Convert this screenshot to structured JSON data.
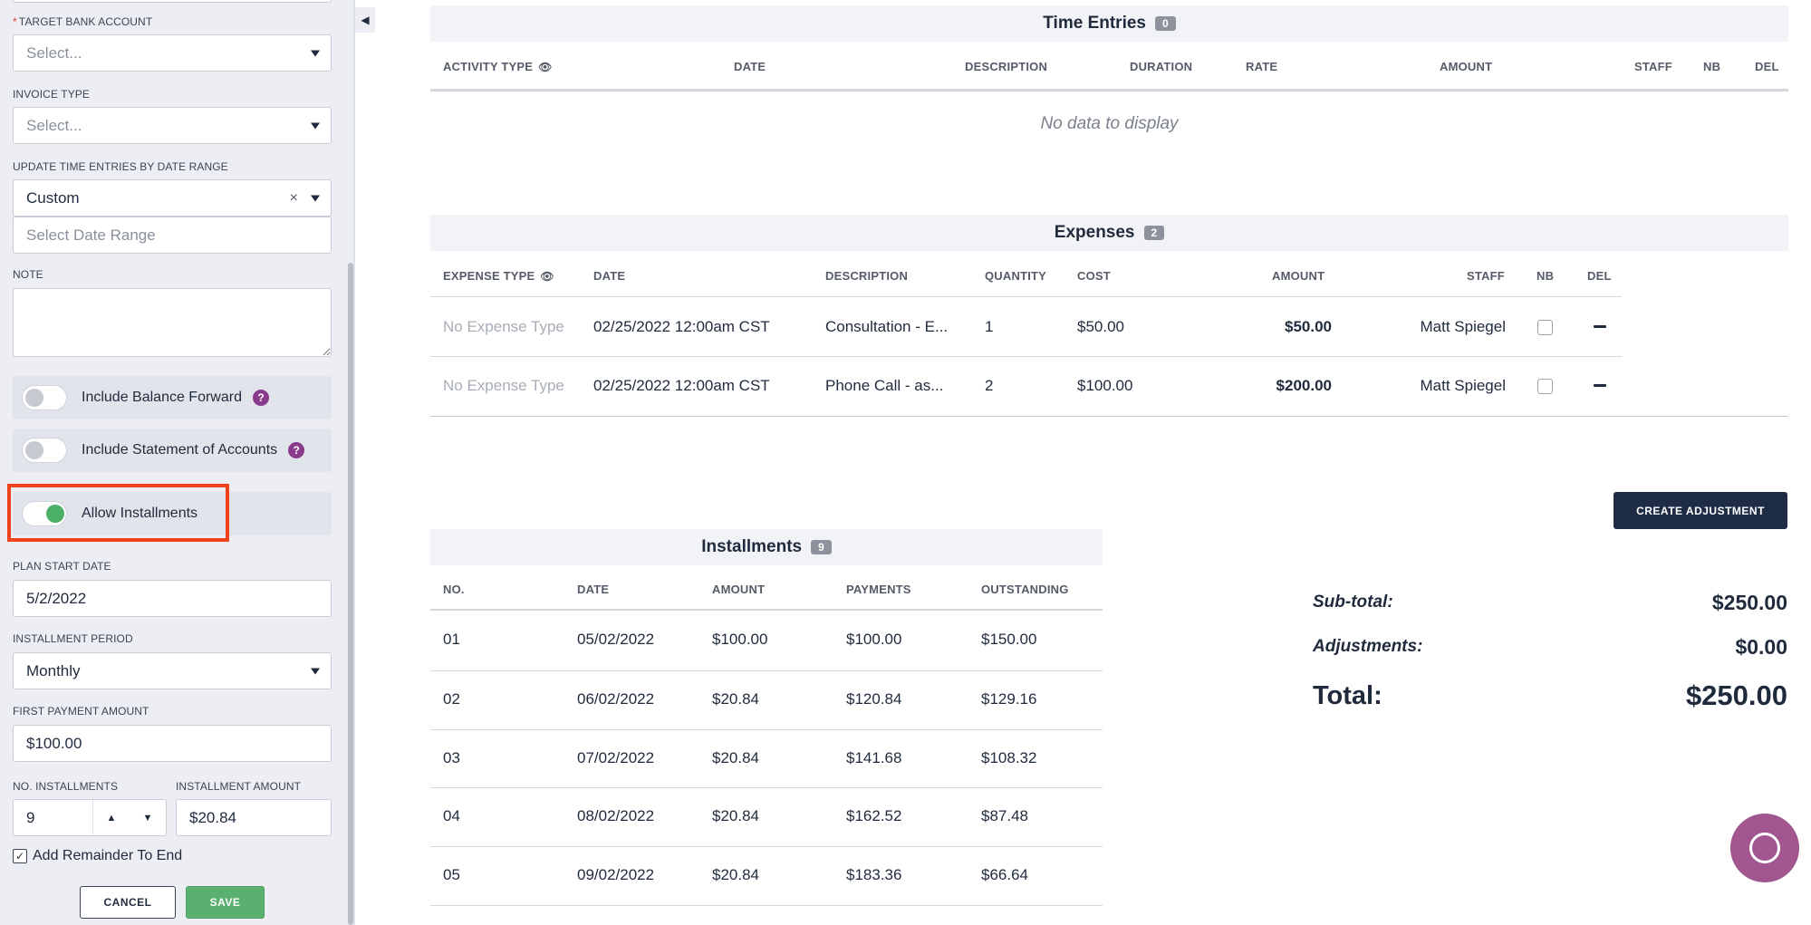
{
  "sidebar": {
    "target_bank_account": {
      "label": "TARGET BANK ACCOUNT",
      "required_mark": "*",
      "placeholder": "Select..."
    },
    "invoice_type": {
      "label": "INVOICE TYPE",
      "placeholder": "Select..."
    },
    "update_time_entries": {
      "label": "UPDATE TIME ENTRIES BY DATE RANGE",
      "value": "Custom",
      "clear_glyph": "×",
      "date_range_placeholder": "Select Date Range"
    },
    "note": {
      "label": "NOTE"
    },
    "toggles": {
      "balance_forward": {
        "label": "Include Balance Forward",
        "on": false,
        "help": "?"
      },
      "statement_of_accounts": {
        "label": "Include Statement of Accounts",
        "on": false,
        "help": "?"
      },
      "allow_installments": {
        "label": "Allow Installments",
        "on": true
      }
    },
    "plan_start_date": {
      "label": "PLAN START DATE",
      "value": "5/2/2022"
    },
    "installment_period": {
      "label": "INSTALLMENT PERIOD",
      "value": "Monthly"
    },
    "first_payment_amount": {
      "label": "FIRST PAYMENT AMOUNT",
      "value": "$100.00"
    },
    "no_installments": {
      "label": "NO. INSTALLMENTS",
      "value": "9",
      "up_glyph": "▲",
      "down_glyph": "▼"
    },
    "installment_amount": {
      "label": "INSTALLMENT AMOUNT",
      "value": "$20.84"
    },
    "add_remainder": {
      "label": "Add Remainder To End",
      "checked": true,
      "check_glyph": "✓"
    },
    "cancel_label": "CANCEL",
    "save_label": "SAVE",
    "collapse_glyph": "◀"
  },
  "time_entries": {
    "title": "Time Entries",
    "count": "0",
    "columns": [
      "ACTIVITY TYPE",
      "DATE",
      "DESCRIPTION",
      "DURATION",
      "RATE",
      "AMOUNT",
      "STAFF",
      "NB",
      "DEL"
    ],
    "empty_text": "No data to display",
    "eye_glyph": "👁"
  },
  "expenses": {
    "title": "Expenses",
    "count": "2",
    "columns": [
      "EXPENSE TYPE",
      "DATE",
      "DESCRIPTION",
      "QUANTITY",
      "COST",
      "AMOUNT",
      "STAFF",
      "NB",
      "DEL"
    ],
    "eye_glyph": "👁",
    "rows": [
      {
        "type": "No Expense Type",
        "date": "02/25/2022 12:00am CST",
        "description": "Consultation - E...",
        "quantity": "1",
        "cost": "$50.00",
        "amount": "$50.00",
        "staff": "Matt Spiegel"
      },
      {
        "type": "No Expense Type",
        "date": "02/25/2022 12:00am CST",
        "description": "Phone Call - as...",
        "quantity": "2",
        "cost": "$100.00",
        "amount": "$200.00",
        "staff": "Matt Spiegel"
      }
    ]
  },
  "create_adjustment_label": "CREATE ADJUSTMENT",
  "installments": {
    "title": "Installments",
    "count": "9",
    "columns": [
      "NO.",
      "DATE",
      "AMOUNT",
      "PAYMENTS",
      "OUTSTANDING"
    ],
    "rows": [
      {
        "no": "01",
        "date": "05/02/2022",
        "amount": "$100.00",
        "payments": "$100.00",
        "outstanding": "$150.00"
      },
      {
        "no": "02",
        "date": "06/02/2022",
        "amount": "$20.84",
        "payments": "$120.84",
        "outstanding": "$129.16"
      },
      {
        "no": "03",
        "date": "07/02/2022",
        "amount": "$20.84",
        "payments": "$141.68",
        "outstanding": "$108.32"
      },
      {
        "no": "04",
        "date": "08/02/2022",
        "amount": "$20.84",
        "payments": "$162.52",
        "outstanding": "$87.48"
      },
      {
        "no": "05",
        "date": "09/02/2022",
        "amount": "$20.84",
        "payments": "$183.36",
        "outstanding": "$66.64"
      }
    ]
  },
  "summary": {
    "subtotal_label": "Sub-total:",
    "subtotal": "$250.00",
    "adjustments_label": "Adjustments:",
    "adjustments": "$0.00",
    "total_label": "Total:",
    "total": "$250.00"
  },
  "colors": {
    "highlight": "#f0421c",
    "save": "#59b06f",
    "toggle_on": "#4caf68",
    "help": "#8a3b8c",
    "create_adj": "#1e2c45",
    "chat": "#a2568f"
  }
}
